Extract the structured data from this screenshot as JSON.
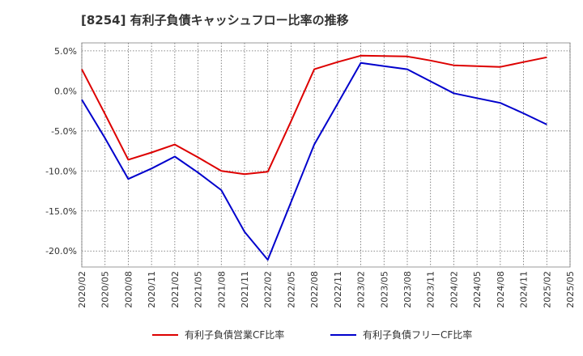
{
  "chart_data": {
    "type": "line",
    "title": "[8254]  有利子負債キャッシュフロー比率の推移",
    "xlabel": "",
    "ylabel": "",
    "ylim": [
      -22,
      6
    ],
    "yticks": [
      5,
      0,
      -5,
      -10,
      -15,
      -20
    ],
    "ytick_labels": [
      "5.0%",
      "0.0%",
      "-5.0%",
      "-10.0%",
      "-15.0%",
      "-20.0%"
    ],
    "x": [
      "2020/02",
      "2020/05",
      "2020/08",
      "2020/11",
      "2021/02",
      "2021/05",
      "2021/08",
      "2021/11",
      "2022/02",
      "2022/05",
      "2022/08",
      "2022/11",
      "2023/02",
      "2023/05",
      "2023/08",
      "2023/11",
      "2024/02",
      "2024/05",
      "2024/08",
      "2024/11",
      "2025/02",
      "2025/05"
    ],
    "grid": true,
    "legend_position": "bottom",
    "series": [
      {
        "name": "有利子負債営業CF比率",
        "color": "#dd0000",
        "values": [
          2.7,
          -2.9,
          -8.6,
          -7.7,
          -6.7,
          -8.3,
          -10.0,
          -10.4,
          -10.1,
          -3.8,
          2.7,
          3.6,
          4.4,
          4.35,
          4.3,
          3.8,
          3.2,
          3.1,
          3.0,
          3.6,
          4.2,
          null
        ]
      },
      {
        "name": "有利子負債フリーCF比率",
        "color": "#0000cc",
        "values": [
          -1.1,
          -5.9,
          -11.0,
          -9.7,
          -8.2,
          -10.2,
          -12.4,
          -17.6,
          -21.1,
          -13.9,
          -6.7,
          -1.6,
          3.5,
          3.1,
          2.7,
          1.2,
          -0.3,
          -0.9,
          -1.5,
          -2.8,
          -4.2,
          null
        ]
      }
    ]
  }
}
